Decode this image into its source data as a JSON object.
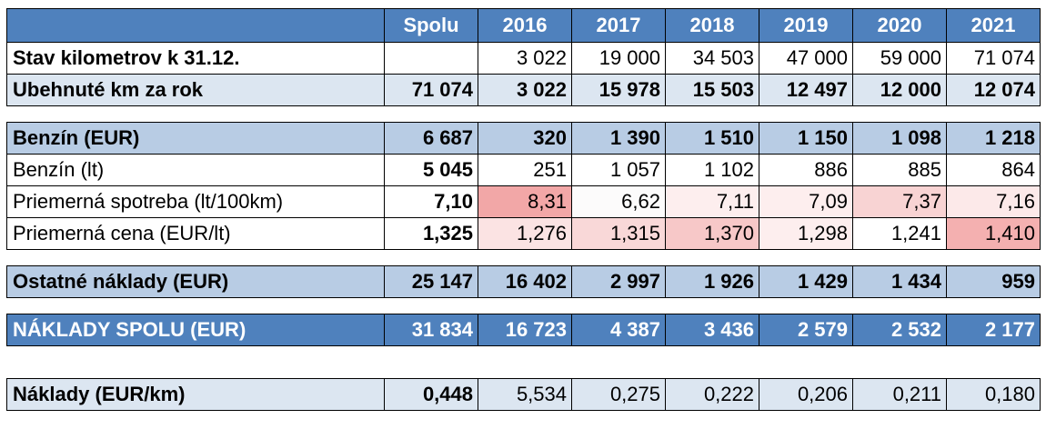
{
  "header": {
    "corner": "",
    "total": "Spolu",
    "years": [
      "2016",
      "2017",
      "2018",
      "2019",
      "2020",
      "2021"
    ]
  },
  "km_state": {
    "label": "Stav kilometrov k 31.12.",
    "total": "",
    "values": [
      "3 022",
      "19 000",
      "34 503",
      "47 000",
      "59 000",
      "71 074"
    ]
  },
  "km_year": {
    "label": "Ubehnuté km za rok",
    "total": "71 074",
    "values": [
      "3 022",
      "15 978",
      "15 503",
      "12 497",
      "12 000",
      "12 074"
    ]
  },
  "fuel_eur": {
    "label": "Benzín (EUR)",
    "total": "6 687",
    "values": [
      "320",
      "1 390",
      "1 510",
      "1 150",
      "1 098",
      "1 218"
    ]
  },
  "fuel_lt": {
    "label": "Benzín (lt)",
    "total": "5 045",
    "values": [
      "251",
      "1 057",
      "1 102",
      "886",
      "885",
      "864"
    ]
  },
  "consumption": {
    "label": "Priemerná spotreba (lt/100km)",
    "total": "7,10",
    "values": [
      "8,31",
      "6,62",
      "7,11",
      "7,09",
      "7,37",
      "7,16"
    ]
  },
  "price": {
    "label": "Priemerná cena (EUR/lt)",
    "total": "1,325",
    "values": [
      "1,276",
      "1,315",
      "1,370",
      "1,298",
      "1,241",
      "1,410"
    ]
  },
  "other": {
    "label": "Ostatné náklady (EUR)",
    "total": "25 147",
    "values": [
      "16 402",
      "2 997",
      "1 926",
      "1 429",
      "1 434",
      "959"
    ]
  },
  "costs_total": {
    "label": "NÁKLADY SPOLU (EUR)",
    "total": "31 834",
    "values": [
      "16 723",
      "4 387",
      "3 436",
      "2 579",
      "2 532",
      "2 177"
    ]
  },
  "cost_per_km": {
    "label": "Náklady (EUR/km)",
    "total": "0,448",
    "values": [
      "5,534",
      "0,275",
      "0,222",
      "0,206",
      "0,211",
      "0,180"
    ]
  },
  "colors": {
    "header_blue": "#4f81bd",
    "row_light": "#dce6f1",
    "row_blue": "#b8cce4",
    "heat_strong": "#f2a7a7",
    "heat_weak": "#fdeeee"
  }
}
